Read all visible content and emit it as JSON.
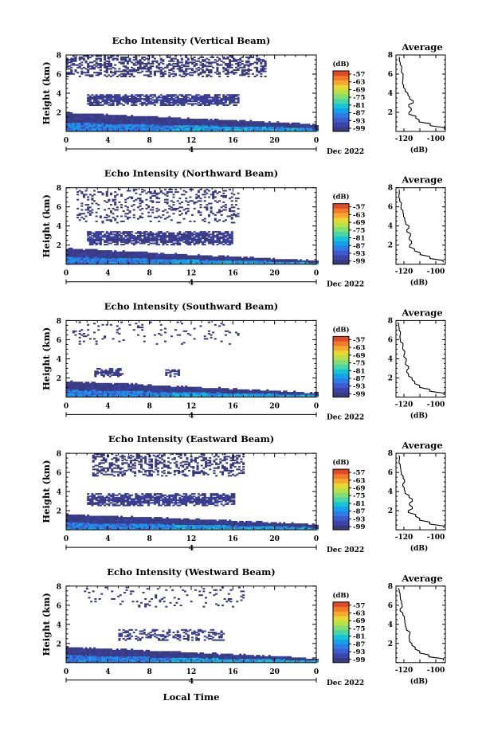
{
  "figure": {
    "x_axis_label": "Local Time",
    "colorbar_unit": "(dB)",
    "colorbar_ticks": [
      "-57",
      "-63",
      "-69",
      "-75",
      "-81",
      "-87",
      "-93",
      "-99"
    ],
    "colorbar_colors": [
      "#3a3a80",
      "#3b44a8",
      "#3e5bd0",
      "#2c7ee6",
      "#13a1ea",
      "#17c4d6",
      "#49d6a6",
      "#82dd74",
      "#b9e046",
      "#e8d834",
      "#f7a92f",
      "#f27a2b",
      "#e04a2a"
    ],
    "date_label": "Dec 2022",
    "day_label": "4",
    "average_title": "Average",
    "average_xlabel": "(dB)"
  },
  "chart_data": [
    {
      "type": "heatmap",
      "title": "Echo Intensity (Vertical Beam)",
      "ylabel": "Height (km)",
      "x_ticks": [
        "0",
        "4",
        "8",
        "12",
        "16",
        "20",
        "0"
      ],
      "y_ticks": [
        "2",
        "4",
        "6",
        "8"
      ],
      "xlim": [
        0,
        24
      ],
      "ylim": [
        0,
        8
      ],
      "clim": [
        -99,
        -57
      ],
      "cloud_layers": [
        {
          "start": 0,
          "end": 19,
          "bottom": 5.7,
          "top": 7.9,
          "density": 0.45,
          "value": -98
        },
        {
          "start": 2,
          "end": 16.5,
          "bottom": 2.7,
          "top": 3.9,
          "density": 0.85,
          "value": -97
        }
      ],
      "boundary_layer": {
        "top_start": 1.9,
        "top_end": 0.7,
        "blue_end": 23.5
      },
      "average_profile": {
        "x_ticks": [
          "-120",
          "-100"
        ],
        "xlim": [
          -125,
          -94
        ],
        "ylim": [
          0,
          8
        ],
        "height": [
          0.2,
          0.6,
          1.0,
          1.4,
          1.8,
          2.2,
          2.6,
          3.0,
          3.4,
          3.8,
          4.2,
          4.6,
          5.0,
          5.4,
          5.8,
          6.2,
          6.6,
          7.0,
          7.4,
          7.8
        ],
        "value": [
          -95,
          -104,
          -110,
          -113,
          -117,
          -115,
          -117,
          -114,
          -116,
          -118,
          -119,
          -120,
          -120.5,
          -121,
          -121,
          -121.5,
          -122,
          -122,
          -123,
          -123.5
        ]
      }
    },
    {
      "type": "heatmap",
      "title": "Echo Intensity (Northward Beam)",
      "ylabel": "Height (km)",
      "x_ticks": [
        "0",
        "4",
        "8",
        "12",
        "16",
        "20",
        "0"
      ],
      "y_ticks": [
        "2",
        "4",
        "6",
        "8"
      ],
      "xlim": [
        0,
        24
      ],
      "ylim": [
        0,
        8
      ],
      "clim": [
        -99,
        -57
      ],
      "cloud_layers": [
        {
          "start": 1,
          "end": 16.5,
          "bottom": 4.3,
          "top": 7.9,
          "density": 0.2,
          "value": -98
        },
        {
          "start": 2,
          "end": 15.8,
          "bottom": 2.0,
          "top": 3.4,
          "density": 0.85,
          "value": -97
        }
      ],
      "boundary_layer": {
        "top_start": 1.6,
        "top_end": 0.3,
        "blue_end": 23
      },
      "average_profile": {
        "x_ticks": [
          "-120",
          "-100"
        ],
        "xlim": [
          -125,
          -94
        ],
        "ylim": [
          0,
          8
        ],
        "height": [
          0.2,
          0.6,
          1.0,
          1.4,
          1.8,
          2.2,
          2.6,
          3.0,
          3.4,
          3.8,
          4.2,
          4.6,
          5.0,
          5.4,
          5.8,
          6.2,
          6.6,
          7.0,
          7.4,
          7.8
        ],
        "value": [
          -95,
          -104,
          -110,
          -113,
          -116,
          -115,
          -117,
          -116,
          -118,
          -117,
          -119,
          -120,
          -120,
          -121,
          -121.5,
          -122,
          -122.5,
          -123,
          -123,
          -123.5
        ]
      }
    },
    {
      "type": "heatmap",
      "title": "Echo Intensity (Southward Beam)",
      "ylabel": "Height (km)",
      "x_ticks": [
        "0",
        "4",
        "8",
        "12",
        "16",
        "20",
        "0"
      ],
      "y_ticks": [
        "2",
        "4",
        "6",
        "8"
      ],
      "xlim": [
        0,
        24
      ],
      "ylim": [
        0,
        8
      ],
      "clim": [
        -99,
        -57
      ],
      "cloud_layers": [
        {
          "start": 0,
          "end": 16.5,
          "bottom": 5.5,
          "top": 7.9,
          "density": 0.07,
          "value": -98
        },
        {
          "start": 2.7,
          "end": 5.5,
          "bottom": 2.1,
          "top": 3.0,
          "density": 0.8,
          "value": -97
        },
        {
          "start": 9.5,
          "end": 10.7,
          "bottom": 2.1,
          "top": 2.9,
          "density": 0.6,
          "value": -97
        }
      ],
      "boundary_layer": {
        "top_start": 1.6,
        "top_end": 0.4,
        "blue_end": 23.7
      },
      "average_profile": {
        "x_ticks": [
          "-120",
          "-100"
        ],
        "xlim": [
          -125,
          -94
        ],
        "ylim": [
          0,
          8
        ],
        "height": [
          0.2,
          0.6,
          1.0,
          1.4,
          1.8,
          2.2,
          2.6,
          3.0,
          3.4,
          3.8,
          4.2,
          4.6,
          5.0,
          5.4,
          5.8,
          6.2,
          6.6,
          7.0,
          7.4,
          7.8
        ],
        "value": [
          -95,
          -104,
          -110,
          -113,
          -115,
          -117,
          -118,
          -117,
          -119,
          -118,
          -120,
          -120,
          -121,
          -121,
          -122,
          -122,
          -122.5,
          -123,
          -123.5,
          -124
        ]
      }
    },
    {
      "type": "heatmap",
      "title": "Echo Intensity (Eastward Beam)",
      "ylabel": "Height (km)",
      "x_ticks": [
        "0",
        "4",
        "8",
        "12",
        "16",
        "20",
        "0"
      ],
      "y_ticks": [
        "2",
        "4",
        "6",
        "8"
      ],
      "xlim": [
        0,
        24
      ],
      "ylim": [
        0,
        8
      ],
      "clim": [
        -99,
        -57
      ],
      "cloud_layers": [
        {
          "start": 2.5,
          "end": 17,
          "bottom": 5.6,
          "top": 7.9,
          "density": 0.4,
          "value": -98
        },
        {
          "start": 2,
          "end": 16,
          "bottom": 2.5,
          "top": 3.7,
          "density": 0.85,
          "value": -97
        }
      ],
      "boundary_layer": {
        "top_start": 1.6,
        "top_end": 0.5,
        "blue_end": 23.5
      },
      "average_profile": {
        "x_ticks": [
          "-120",
          "-100"
        ],
        "xlim": [
          -125,
          -94
        ],
        "ylim": [
          0,
          8
        ],
        "height": [
          0.2,
          0.6,
          1.0,
          1.4,
          1.8,
          2.2,
          2.6,
          3.0,
          3.4,
          3.8,
          4.2,
          4.6,
          5.0,
          5.4,
          5.8,
          6.2,
          6.6,
          7.0,
          7.4,
          7.8
        ],
        "value": [
          -95,
          -104,
          -110,
          -113,
          -117,
          -115,
          -117,
          -115,
          -117,
          -119,
          -120,
          -121,
          -120,
          -121,
          -121.5,
          -122,
          -122,
          -123,
          -123,
          -123.5
        ]
      }
    },
    {
      "type": "heatmap",
      "title": "Echo Intensity (Westward Beam)",
      "ylabel": "Height (km)",
      "x_ticks": [
        "0",
        "4",
        "8",
        "12",
        "16",
        "20",
        "0"
      ],
      "y_ticks": [
        "2",
        "4",
        "6",
        "8"
      ],
      "xlim": [
        0,
        24
      ],
      "ylim": [
        0,
        8
      ],
      "clim": [
        -99,
        -57
      ],
      "cloud_layers": [
        {
          "start": 1.5,
          "end": 17,
          "bottom": 5.8,
          "top": 7.9,
          "density": 0.07,
          "value": -98
        },
        {
          "start": 5,
          "end": 15,
          "bottom": 2.3,
          "top": 3.4,
          "density": 0.45,
          "value": -97
        }
      ],
      "boundary_layer": {
        "top_start": 1.6,
        "top_end": 0.4,
        "blue_end": 24
      },
      "average_profile": {
        "x_ticks": [
          "-120",
          "-100"
        ],
        "xlim": [
          -125,
          -94
        ],
        "ylim": [
          0,
          8
        ],
        "height": [
          0.2,
          0.6,
          1.0,
          1.4,
          1.8,
          2.2,
          2.6,
          3.0,
          3.4,
          3.8,
          4.2,
          4.6,
          5.0,
          5.4,
          5.8,
          6.2,
          6.6,
          7.0,
          7.4,
          7.8
        ],
        "value": [
          -95,
          -104,
          -110,
          -113,
          -115,
          -116,
          -117,
          -116,
          -118,
          -119,
          -120,
          -120,
          -121,
          -122,
          -121,
          -122,
          -122.5,
          -123,
          -123.5,
          -124
        ]
      }
    }
  ]
}
